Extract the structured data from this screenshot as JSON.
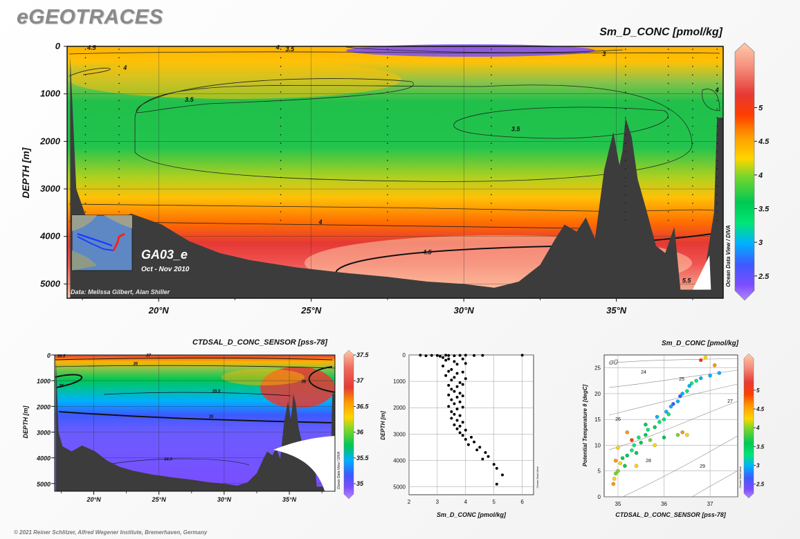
{
  "header": {
    "logo": "eGEOTRACES",
    "copyright": "© 2021 Reiner Schlitzer, Alfred Wegener Institute, Bremerhaven, Germany"
  },
  "colors": {
    "terrain": "#3c3c3c",
    "ramp": [
      "#b388ff",
      "#7c4dff",
      "#3d5afe",
      "#00b0ff",
      "#00c853",
      "#64dd17",
      "#ffd600",
      "#ffab00",
      "#ff6d00",
      "#e53935",
      "#ef5350",
      "#ff8a65",
      "#ffccbc"
    ]
  },
  "icons": {
    "section_map": "map-inset-icon"
  },
  "section": {
    "title": "Sm_D_CONC [pmol/kg]",
    "cruise": "GA03_e",
    "dates": "Oct - Nov 2010",
    "credit": "Data: Melissa Gilbert, Alan Shiller",
    "watermark": "Ocean Data View / DIVA",
    "ylabel": "DEPTH [m]"
  },
  "salinity": {
    "title": "CTDSAL_D_CONC_SENSOR [pss-78]",
    "ylabel": "DEPTH [m]",
    "watermark": "Ocean Data View / DIVA"
  },
  "profile": {
    "xlabel": "Sm_D_CONC [pmol/kg]",
    "ylabel": "DEPTH [m]",
    "watermark": "Ocean Data View"
  },
  "ts": {
    "title": "Sm_D_CONC [pmol/kg]",
    "xlabel": "CTDSAL_D_CONC_SENSOR [pss-78]",
    "ylabel": "Potential Temperature θ [degC]",
    "sigma_symbol": "σ0",
    "watermark": "Ocean Data View"
  },
  "chart_data": [
    {
      "type": "heatmap",
      "title": "Sm_D_CONC [pmol/kg]",
      "ylabel": "DEPTH [m]",
      "x_ticks": [
        "20°N",
        "25°N",
        "30°N",
        "35°N"
      ],
      "x_tick_values": [
        20,
        25,
        30,
        35
      ],
      "y_ticks": [
        "0",
        "1000",
        "2000",
        "3000",
        "4000",
        "5000"
      ],
      "y_tick_values": [
        0,
        1000,
        2000,
        3000,
        4000,
        5000
      ],
      "xlim": [
        17,
        38.5
      ],
      "ylim": [
        5300,
        0
      ],
      "colorbar": {
        "ticks": [
          "2.5",
          "3",
          "3.5",
          "4",
          "4.5",
          "5"
        ],
        "values": [
          2.5,
          3,
          3.5,
          4,
          4.5,
          5
        ],
        "range": [
          2.2,
          5.9
        ]
      },
      "contour_labels": [
        {
          "text": "4.5",
          "x": 17.8,
          "y": 30
        },
        {
          "text": "4",
          "x": 23.9,
          "y": 20
        },
        {
          "text": "3.5",
          "x": 24.3,
          "y": 60
        },
        {
          "text": "3",
          "x": 34.6,
          "y": 160
        },
        {
          "text": "4",
          "x": 18.9,
          "y": 450
        },
        {
          "text": "3.5",
          "x": 21.0,
          "y": 1120
        },
        {
          "text": "3.5",
          "x": 31.7,
          "y": 1740
        },
        {
          "text": "4",
          "x": 38.3,
          "y": 920
        },
        {
          "text": "4",
          "x": 25.3,
          "y": 3700
        },
        {
          "text": "4.5",
          "x": 28.8,
          "y": 4330
        },
        {
          "text": "5.5",
          "x": 37.3,
          "y": 4930
        }
      ],
      "stations_x": [
        17.6,
        18.7,
        24.0,
        27.5,
        30.9,
        35.3,
        36.7,
        37.5,
        38.3
      ],
      "bottom_depth": [
        [
          17.1,
          200
        ],
        [
          17.3,
          3000
        ],
        [
          17.6,
          3550
        ],
        [
          18.3,
          3750
        ],
        [
          19.1,
          3520
        ],
        [
          20.1,
          3750
        ],
        [
          21.0,
          4100
        ],
        [
          22.0,
          4350
        ],
        [
          23.0,
          4500
        ],
        [
          24.5,
          4650
        ],
        [
          26.0,
          4760
        ],
        [
          27.5,
          4850
        ],
        [
          28.8,
          4950
        ],
        [
          30.0,
          5000
        ],
        [
          31.0,
          5080
        ],
        [
          31.8,
          4950
        ],
        [
          32.5,
          4600
        ],
        [
          33.0,
          4050
        ],
        [
          33.3,
          3750
        ],
        [
          33.7,
          3900
        ],
        [
          34.0,
          3600
        ],
        [
          34.3,
          4050
        ],
        [
          34.6,
          2600
        ],
        [
          34.9,
          1800
        ],
        [
          35.1,
          2500
        ],
        [
          35.2,
          2200
        ],
        [
          35.3,
          1500
        ],
        [
          35.5,
          1900
        ],
        [
          35.7,
          2800
        ],
        [
          35.9,
          3250
        ],
        [
          36.3,
          4200
        ],
        [
          36.6,
          4350
        ],
        [
          36.9,
          3800
        ],
        [
          37.1,
          5120
        ],
        [
          37.8,
          5120
        ],
        [
          38.2,
          3500
        ],
        [
          38.3,
          1500
        ],
        [
          38.5,
          1500
        ]
      ]
    },
    {
      "type": "heatmap",
      "title": "CTDSAL_D_CONC_SENSOR [pss-78]",
      "ylabel": "DEPTH [m]",
      "x_ticks": [
        "20°N",
        "25°N",
        "30°N",
        "35°N"
      ],
      "x_tick_values": [
        20,
        25,
        30,
        35
      ],
      "y_ticks": [
        "0",
        "1000",
        "2000",
        "3000",
        "4000",
        "5000"
      ],
      "y_tick_values": [
        0,
        1000,
        2000,
        3000,
        4000,
        5000
      ],
      "xlim": [
        17,
        38.5
      ],
      "ylim": [
        5300,
        0
      ],
      "colorbar": {
        "ticks": [
          "35",
          "35.5",
          "36",
          "36.5",
          "37",
          "37.5"
        ],
        "values": [
          35,
          35.5,
          36,
          36.5,
          37,
          37.5
        ],
        "range": [
          34.8,
          37.5
        ]
      },
      "contour_labels": [
        {
          "text": "36.5",
          "x": 17.5,
          "y": 40
        },
        {
          "text": "37",
          "x": 24.2,
          "y": 20
        },
        {
          "text": "36",
          "x": 23.2,
          "y": 330
        },
        {
          "text": "35",
          "x": 17.5,
          "y": 1200
        },
        {
          "text": "35.5",
          "x": 29.4,
          "y": 1400
        },
        {
          "text": "36",
          "x": 36.1,
          "y": 1030
        },
        {
          "text": "35",
          "x": 29.0,
          "y": 2400
        },
        {
          "text": "34.9",
          "x": 25.7,
          "y": 4050
        }
      ]
    },
    {
      "type": "scatter",
      "xlabel": "Sm_D_CONC [pmol/kg]",
      "ylabel": "DEPTH [m]",
      "x_ticks": [
        "2",
        "3",
        "4",
        "5",
        "6"
      ],
      "x_tick_values": [
        2,
        3,
        4,
        5,
        6
      ],
      "y_ticks": [
        "0",
        "1000",
        "2000",
        "3000",
        "4000",
        "5000"
      ],
      "y_tick_values": [
        0,
        1000,
        2000,
        3000,
        4000,
        5000
      ],
      "xlim": [
        2,
        6.4
      ],
      "ylim": [
        5300,
        0
      ],
      "points": [
        [
          2.4,
          10
        ],
        [
          2.6,
          30
        ],
        [
          2.8,
          15
        ],
        [
          3.0,
          20
        ],
        [
          3.1,
          50
        ],
        [
          3.3,
          10
        ],
        [
          3.4,
          20
        ],
        [
          3.6,
          30
        ],
        [
          3.8,
          15
        ],
        [
          4.0,
          10
        ],
        [
          4.3,
          20
        ],
        [
          4.6,
          15
        ],
        [
          6.0,
          10
        ],
        [
          3.2,
          100
        ],
        [
          3.3,
          200
        ],
        [
          3.4,
          150
        ],
        [
          3.6,
          250
        ],
        [
          3.7,
          350
        ],
        [
          3.9,
          150
        ],
        [
          4.0,
          320
        ],
        [
          3.2,
          420
        ],
        [
          3.5,
          550
        ],
        [
          3.4,
          620
        ],
        [
          3.7,
          700
        ],
        [
          3.9,
          650
        ],
        [
          3.3,
          780
        ],
        [
          3.6,
          850
        ],
        [
          4.0,
          900
        ],
        [
          3.5,
          950
        ],
        [
          3.8,
          1050
        ],
        [
          3.4,
          1150
        ],
        [
          3.7,
          1200
        ],
        [
          3.9,
          1120
        ],
        [
          3.5,
          1300
        ],
        [
          3.6,
          1380
        ],
        [
          3.8,
          1450
        ],
        [
          3.4,
          1520
        ],
        [
          3.7,
          1600
        ],
        [
          3.9,
          1550
        ],
        [
          3.5,
          1700
        ],
        [
          3.8,
          1780
        ],
        [
          3.6,
          1850
        ],
        [
          3.4,
          1950
        ],
        [
          3.7,
          2050
        ],
        [
          3.9,
          1980
        ],
        [
          3.5,
          2150
        ],
        [
          3.6,
          2250
        ],
        [
          3.8,
          2300
        ],
        [
          3.5,
          2400
        ],
        [
          3.7,
          2480
        ],
        [
          3.9,
          2550
        ],
        [
          3.6,
          2650
        ],
        [
          3.8,
          2700
        ],
        [
          3.7,
          2800
        ],
        [
          4.0,
          2850
        ],
        [
          3.8,
          2950
        ],
        [
          3.9,
          3050
        ],
        [
          4.2,
          3120
        ],
        [
          4.0,
          3200
        ],
        [
          4.3,
          3300
        ],
        [
          4.1,
          3400
        ],
        [
          4.5,
          3500
        ],
        [
          4.4,
          3600
        ],
        [
          4.7,
          3700
        ],
        [
          4.8,
          3850
        ],
        [
          4.6,
          3950
        ],
        [
          5.0,
          4150
        ],
        [
          5.1,
          4300
        ],
        [
          5.3,
          4550
        ],
        [
          5.1,
          4900
        ]
      ]
    },
    {
      "type": "scatter",
      "title": "Sm_D_CONC [pmol/kg]",
      "xlabel": "CTDSAL_D_CONC_SENSOR [pss-78]",
      "ylabel": "Potential Temperature θ [degC]",
      "x_ticks": [
        "35",
        "36",
        "37"
      ],
      "x_tick_values": [
        35,
        36,
        37
      ],
      "y_ticks": [
        "0",
        "5",
        "10",
        "15",
        "20",
        "25"
      ],
      "y_tick_values": [
        0,
        5,
        10,
        15,
        20,
        25
      ],
      "xlim": [
        34.7,
        37.6
      ],
      "ylim": [
        0,
        27.5
      ],
      "colorbar": {
        "ticks": [
          "2.5",
          "3",
          "3.5",
          "4",
          "4.5",
          "5"
        ],
        "values": [
          2.5,
          3,
          3.5,
          4,
          4.5,
          5
        ],
        "range": [
          2.2,
          5.9
        ]
      },
      "sigma_labels": [
        "24",
        "25",
        "26",
        "27",
        "28",
        "29"
      ],
      "points": [
        [
          34.9,
          2.5,
          4.1
        ],
        [
          34.92,
          3.5,
          3.9
        ],
        [
          34.95,
          4.5,
          3.7
        ],
        [
          35.0,
          5.0,
          3.6
        ],
        [
          35.05,
          6.5,
          3.8
        ],
        [
          34.95,
          7.0,
          4.2
        ],
        [
          35.1,
          7.5,
          3.5
        ],
        [
          35.15,
          6.0,
          3.4
        ],
        [
          35.2,
          8.0,
          3.4
        ],
        [
          35.3,
          9.0,
          3.3
        ],
        [
          35.4,
          8.5,
          3.5
        ],
        [
          35.35,
          10.0,
          3.2
        ],
        [
          35.5,
          10.5,
          3.4
        ],
        [
          35.45,
          11.5,
          3.3
        ],
        [
          35.6,
          12.0,
          3.5
        ],
        [
          35.7,
          11.0,
          3.6
        ],
        [
          35.65,
          13.0,
          3.3
        ],
        [
          35.8,
          13.5,
          3.4
        ],
        [
          35.9,
          14.5,
          3.2
        ],
        [
          35.85,
          15.5,
          3.1
        ],
        [
          36.0,
          15.0,
          3.3
        ],
        [
          36.05,
          16.5,
          3.0
        ],
        [
          36.1,
          16.0,
          3.2
        ],
        [
          36.15,
          17.5,
          3.0
        ],
        [
          36.2,
          18.0,
          2.9
        ],
        [
          36.3,
          18.5,
          3.1
        ],
        [
          36.35,
          19.5,
          2.9
        ],
        [
          36.4,
          20.0,
          3.0
        ],
        [
          36.5,
          20.5,
          3.2
        ],
        [
          36.55,
          21.5,
          3.1
        ],
        [
          36.6,
          22.0,
          3.3
        ],
        [
          36.7,
          22.5,
          3.2
        ],
        [
          36.8,
          23.0,
          3.1
        ],
        [
          37.0,
          23.5,
          3.0
        ],
        [
          37.2,
          24.0,
          3.1
        ],
        [
          36.3,
          12.0,
          3.7
        ],
        [
          36.4,
          12.5,
          4.0
        ],
        [
          36.5,
          12.0,
          3.8
        ],
        [
          35.3,
          11.0,
          4.3
        ],
        [
          35.2,
          12.5,
          4.0
        ],
        [
          35.0,
          9.5,
          3.9
        ],
        [
          35.4,
          6.0,
          3.8
        ],
        [
          36.8,
          26.5,
          4.4
        ],
        [
          37.1,
          25.5,
          4.1
        ],
        [
          36.9,
          27.0,
          3.9
        ],
        [
          35.8,
          10.0,
          3.8
        ],
        [
          36.0,
          11.5,
          3.5
        ],
        [
          35.6,
          14.0,
          3.4
        ]
      ]
    }
  ]
}
